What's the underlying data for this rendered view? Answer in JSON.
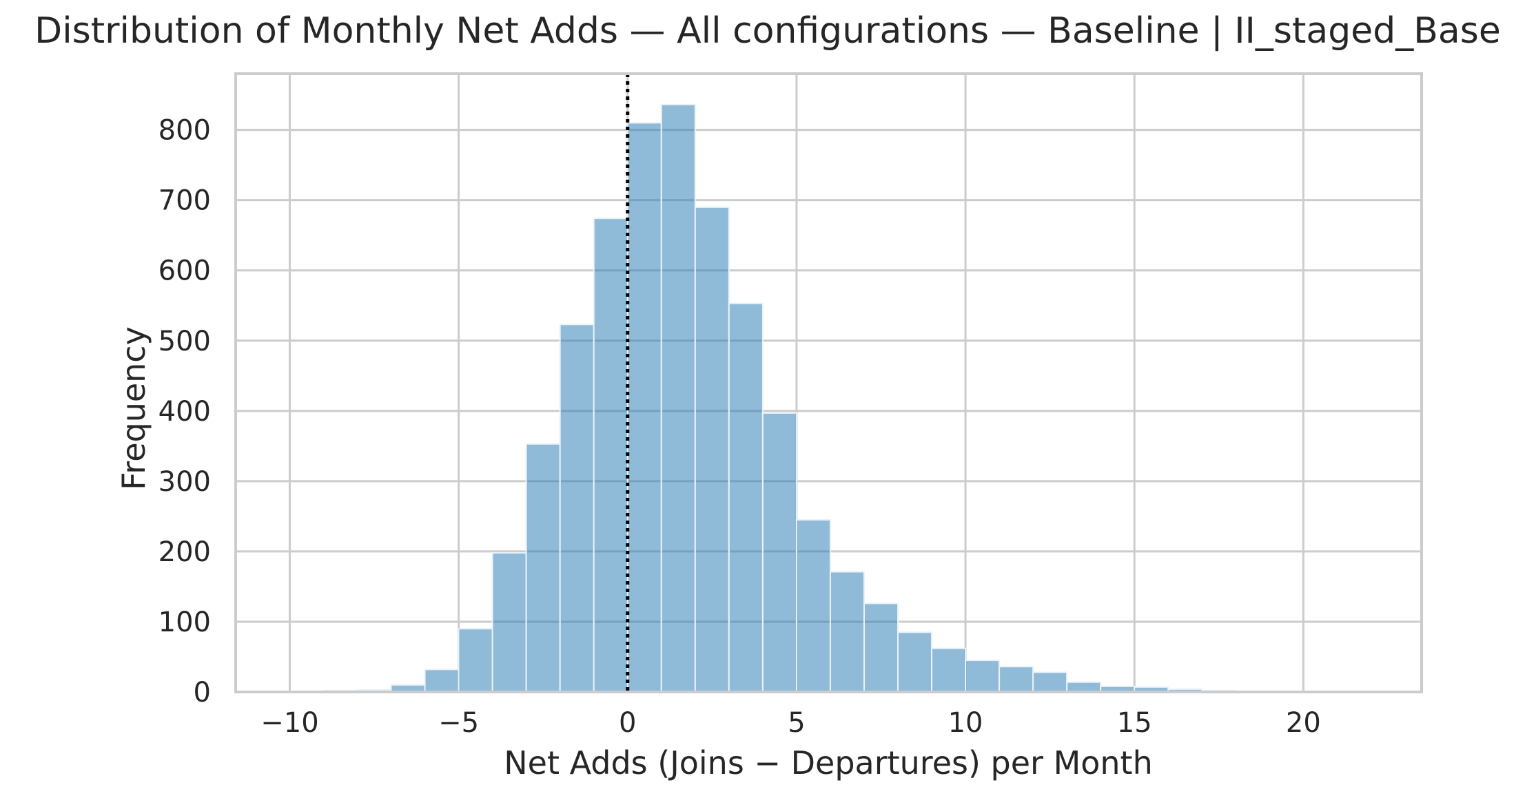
{
  "chart_data": {
    "type": "histogram",
    "title": "Distribution of Monthly Net Adds — All configurations — Baseline | II_staged_Base",
    "xlabel": "Net Adds (Joins − Departures) per Month",
    "ylabel": "Frequency",
    "xlim": [
      -11.6,
      23.5
    ],
    "ylim": [
      0,
      880
    ],
    "xticks": [
      -10,
      -5,
      0,
      5,
      10,
      15,
      20
    ],
    "xtick_labels": [
      "−10",
      "−5",
      "0",
      "5",
      "10",
      "15",
      "20"
    ],
    "yticks": [
      0,
      100,
      200,
      300,
      400,
      500,
      600,
      700,
      800
    ],
    "ytick_labels": [
      "0",
      "100",
      "200",
      "300",
      "400",
      "500",
      "600",
      "700",
      "800"
    ],
    "grid": true,
    "bin_width": 1,
    "bins": [
      {
        "x0": -10,
        "x1": -9,
        "count": 1
      },
      {
        "x0": -9,
        "x1": -8,
        "count": 2
      },
      {
        "x0": -8,
        "x1": -7,
        "count": 3
      },
      {
        "x0": -7,
        "x1": -6,
        "count": 10
      },
      {
        "x0": -6,
        "x1": -5,
        "count": 32
      },
      {
        "x0": -5,
        "x1": -4,
        "count": 90
      },
      {
        "x0": -4,
        "x1": -3,
        "count": 198
      },
      {
        "x0": -3,
        "x1": -2,
        "count": 353
      },
      {
        "x0": -2,
        "x1": -1,
        "count": 523
      },
      {
        "x0": -1,
        "x1": 0,
        "count": 674
      },
      {
        "x0": 0,
        "x1": 1,
        "count": 810
      },
      {
        "x0": 1,
        "x1": 2,
        "count": 836
      },
      {
        "x0": 2,
        "x1": 3,
        "count": 690
      },
      {
        "x0": 3,
        "x1": 4,
        "count": 553
      },
      {
        "x0": 4,
        "x1": 5,
        "count": 397
      },
      {
        "x0": 5,
        "x1": 6,
        "count": 245
      },
      {
        "x0": 6,
        "x1": 7,
        "count": 171
      },
      {
        "x0": 7,
        "x1": 8,
        "count": 126
      },
      {
        "x0": 8,
        "x1": 9,
        "count": 85
      },
      {
        "x0": 9,
        "x1": 10,
        "count": 62
      },
      {
        "x0": 10,
        "x1": 11,
        "count": 45
      },
      {
        "x0": 11,
        "x1": 12,
        "count": 36
      },
      {
        "x0": 12,
        "x1": 13,
        "count": 28
      },
      {
        "x0": 13,
        "x1": 14,
        "count": 14
      },
      {
        "x0": 14,
        "x1": 15,
        "count": 8
      },
      {
        "x0": 15,
        "x1": 16,
        "count": 7
      },
      {
        "x0": 16,
        "x1": 17,
        "count": 4
      },
      {
        "x0": 17,
        "x1": 18,
        "count": 2
      },
      {
        "x0": 18,
        "x1": 19,
        "count": 1
      },
      {
        "x0": 19,
        "x1": 20,
        "count": 1
      },
      {
        "x0": 20,
        "x1": 21,
        "count": 1
      },
      {
        "x0": 21,
        "x1": 22,
        "count": 1
      },
      {
        "x0": 22,
        "x1": 23,
        "count": 1
      }
    ],
    "reference_line": {
      "x": 0,
      "style": "dotted",
      "color": "#000000"
    },
    "bar_color": "#1f77b4",
    "bar_opacity": 0.5
  }
}
